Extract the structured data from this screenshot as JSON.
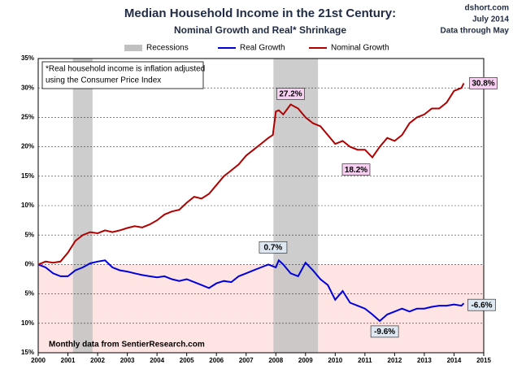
{
  "chart_data": {
    "type": "line",
    "title": "Median Household Income in the 21st Century:",
    "subtitle": "Nominal  Growth and Real* Shrinkage",
    "source_lines": [
      "dshort.com",
      "July 2014",
      "Data through May"
    ],
    "note_lines": [
      "*Real household  income is inflation adjusted",
      "using  the Consumer Price Index"
    ],
    "footnote": "Monthly data from SentierResearch.com",
    "recessions": {
      "name": "Recessions",
      "color": "#c0c0c0",
      "spans": [
        [
          2001.17,
          2001.83
        ],
        [
          2007.92,
          2009.42
        ]
      ]
    },
    "negative_shade": "#ffe4e4",
    "grid": true,
    "xlim": [
      2000,
      2015
    ],
    "xticks": [
      2000,
      2001,
      2002,
      2003,
      2004,
      2005,
      2006,
      2007,
      2008,
      2009,
      2010,
      2011,
      2012,
      2013,
      2014,
      2015
    ],
    "ylim": [
      -15,
      35
    ],
    "yticks": [
      {
        "value": 35,
        "label": "35%"
      },
      {
        "value": 30,
        "label": "30%"
      },
      {
        "value": 25,
        "label": "25%"
      },
      {
        "value": 20,
        "label": "20%"
      },
      {
        "value": 15,
        "label": "15%"
      },
      {
        "value": 10,
        "label": "10%"
      },
      {
        "value": 5,
        "label": "5%"
      },
      {
        "value": 0,
        "label": "0%"
      },
      {
        "value": -5,
        "label": "5%"
      },
      {
        "value": -10,
        "label": "10%"
      },
      {
        "value": -15,
        "label": "15%"
      }
    ],
    "x": [
      2000.0,
      2000.25,
      2000.5,
      2000.75,
      2001.0,
      2001.25,
      2001.5,
      2001.75,
      2002.0,
      2002.25,
      2002.5,
      2002.75,
      2003.0,
      2003.25,
      2003.5,
      2003.75,
      2004.0,
      2004.25,
      2004.5,
      2004.75,
      2005.0,
      2005.25,
      2005.5,
      2005.75,
      2006.0,
      2006.25,
      2006.5,
      2006.75,
      2007.0,
      2007.25,
      2007.5,
      2007.75,
      2007.9,
      2008.0,
      2008.1,
      2008.25,
      2008.5,
      2008.75,
      2009.0,
      2009.25,
      2009.5,
      2009.75,
      2010.0,
      2010.25,
      2010.5,
      2010.75,
      2011.0,
      2011.25,
      2011.5,
      2011.75,
      2012.0,
      2012.25,
      2012.5,
      2012.75,
      2013.0,
      2013.25,
      2013.5,
      2013.75,
      2014.0,
      2014.25,
      2014.33
    ],
    "series": [
      {
        "name": "Real Growth",
        "color": "#0000dd",
        "values": [
          0,
          -0.5,
          -1.5,
          -2,
          -2,
          -1,
          -0.5,
          0.2,
          0.5,
          0.7,
          -0.5,
          -1,
          -1.2,
          -1.5,
          -1.8,
          -2,
          -2.2,
          -2,
          -2.5,
          -2.8,
          -2.5,
          -3,
          -3.5,
          -4,
          -3.2,
          -2.8,
          -3,
          -2,
          -1.5,
          -1,
          -0.5,
          0,
          -0.3,
          -0.5,
          0.7,
          0,
          -1.5,
          -2,
          0.3,
          -1,
          -2.5,
          -3.5,
          -6,
          -4.5,
          -6.5,
          -7,
          -7.5,
          -8.5,
          -9.6,
          -8.5,
          -8,
          -7.5,
          -8,
          -7.5,
          -7.5,
          -7.2,
          -7,
          -7,
          -6.8,
          -7,
          -6.6
        ]
      },
      {
        "name": "Nominal Growth",
        "color": "#b00000",
        "values": [
          0,
          0.5,
          0.3,
          0.5,
          2,
          4,
          5,
          5.5,
          5.3,
          5.8,
          5.5,
          5.8,
          6.2,
          6.5,
          6.3,
          6.8,
          7.5,
          8.5,
          9,
          9.3,
          10.5,
          11.5,
          11.2,
          12,
          13.5,
          15,
          16,
          17,
          18.5,
          19.5,
          20.5,
          21.5,
          22,
          26,
          26.2,
          25.5,
          27.2,
          26.5,
          25,
          24,
          23.5,
          22,
          20.5,
          21,
          20,
          19.5,
          19.5,
          18.2,
          20,
          21.5,
          21,
          22,
          24,
          25,
          25.5,
          26.5,
          26.5,
          27.5,
          29.5,
          30,
          30.8
        ]
      }
    ],
    "annotations": [
      {
        "text": "27.2%",
        "x": 2008.5,
        "y": 27.2,
        "series": 1
      },
      {
        "text": "18.2%",
        "x": 2011.25,
        "y": 18.2,
        "series": 1
      },
      {
        "text": "30.8%",
        "x": 2014.33,
        "y": 30.8,
        "series": 1
      },
      {
        "text": "0.7%",
        "x": 2008.1,
        "y": 0.7,
        "series": 0
      },
      {
        "text": "-9.6%",
        "x": 2011.5,
        "y": -9.6,
        "series": 0
      },
      {
        "text": "-6.6%",
        "x": 2014.33,
        "y": -6.6,
        "series": 0
      }
    ]
  }
}
